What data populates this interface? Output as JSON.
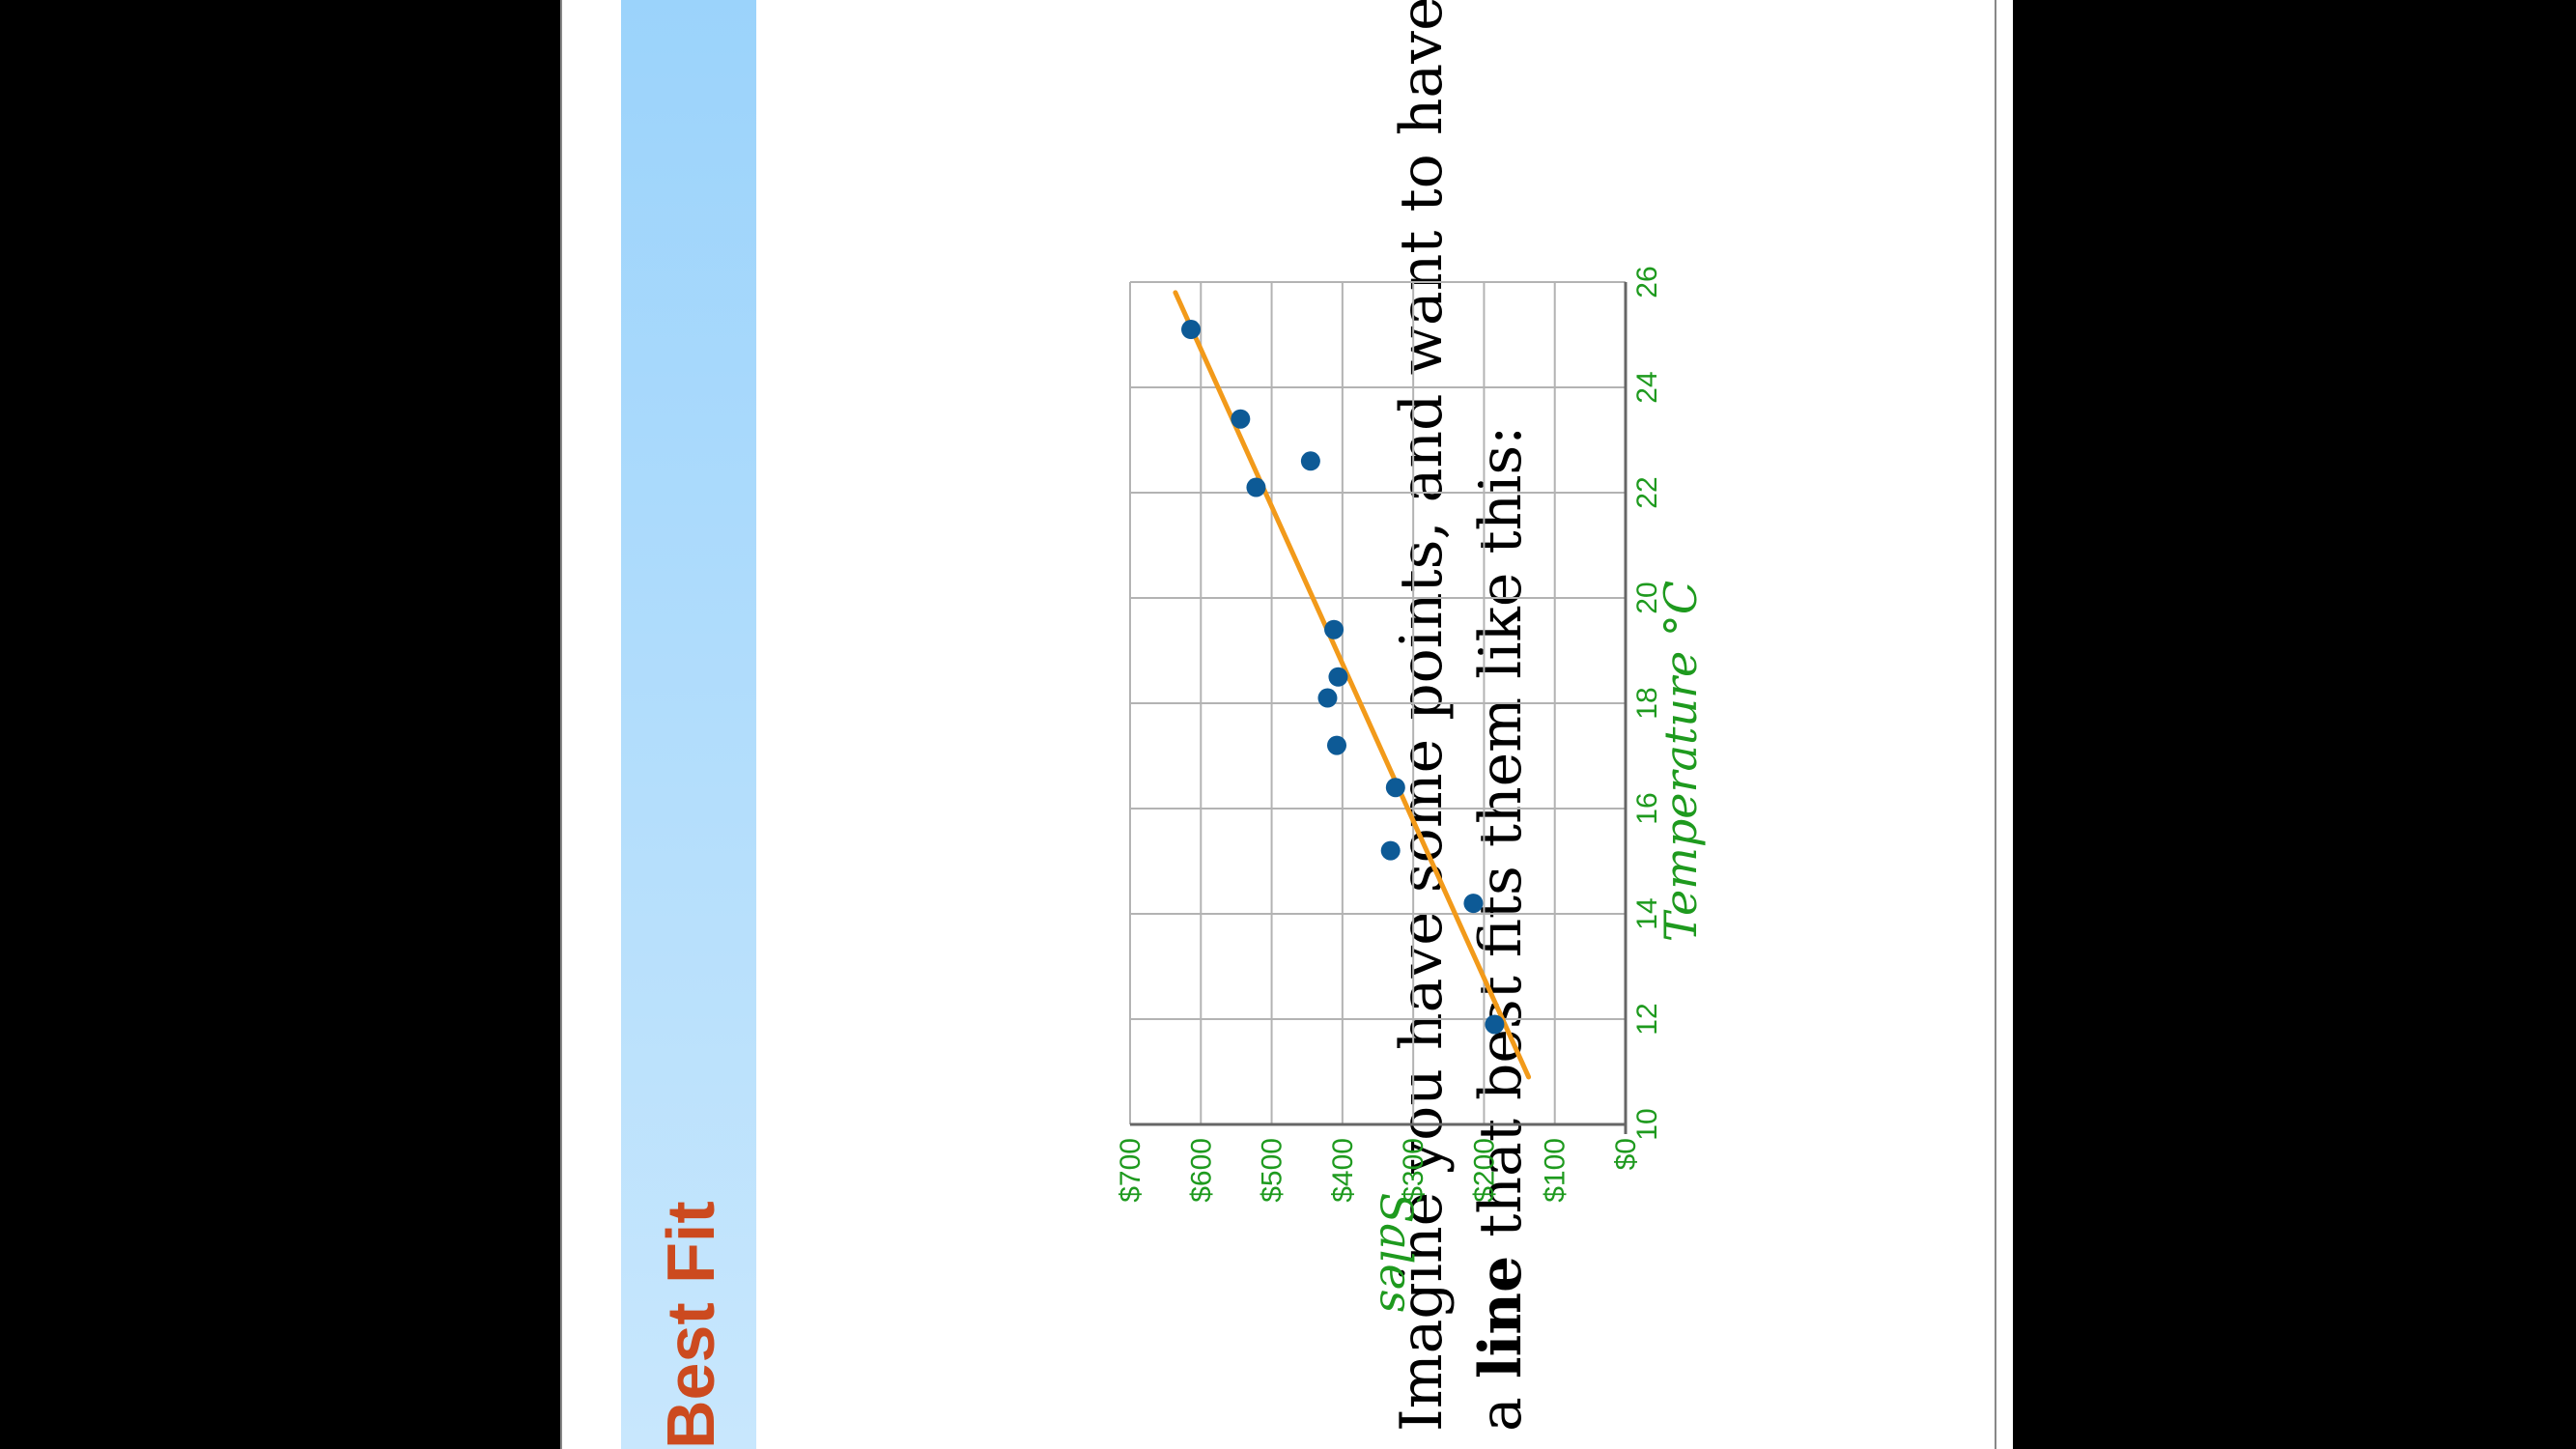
{
  "slide": {
    "title": "Best Fit",
    "body_line1": "Imagine you have some points, and want to have",
    "body_line2_pre": "a ",
    "body_line2_bold": "line",
    "body_line2_post": " that best fits them like this:"
  },
  "colors": {
    "title": "#cc4a1f",
    "axis_text": "#1e9a1e",
    "point": "#0d5a96",
    "fit_line": "#f29a1a",
    "band_top": "#9bd3fb",
    "band_bottom": "#c8e7fd",
    "grid": "#b3b3b3"
  },
  "chart_data": {
    "type": "scatter",
    "orientation": "rotated 90 degrees clockwise",
    "xlabel": "Temperature °C",
    "ylabel": "Sales",
    "xlim": [
      10,
      26
    ],
    "ylim": [
      0,
      700
    ],
    "x_ticks": [
      "10",
      "12",
      "14",
      "16",
      "18",
      "20",
      "22",
      "24",
      "26"
    ],
    "y_ticks": [
      "$0",
      "$100",
      "$200",
      "$300",
      "$400",
      "$500",
      "$600",
      "$700"
    ],
    "grid": true,
    "points": [
      {
        "x": 11.9,
        "y": 185
      },
      {
        "x": 14.2,
        "y": 215
      },
      {
        "x": 15.2,
        "y": 332
      },
      {
        "x": 16.4,
        "y": 325
      },
      {
        "x": 17.2,
        "y": 408
      },
      {
        "x": 18.1,
        "y": 421
      },
      {
        "x": 18.5,
        "y": 406
      },
      {
        "x": 19.4,
        "y": 412
      },
      {
        "x": 22.1,
        "y": 522
      },
      {
        "x": 22.6,
        "y": 445
      },
      {
        "x": 23.4,
        "y": 544
      },
      {
        "x": 25.1,
        "y": 614
      }
    ],
    "fit_line": {
      "x": [
        10.9,
        25.8
      ],
      "y": [
        137,
        636
      ]
    }
  }
}
